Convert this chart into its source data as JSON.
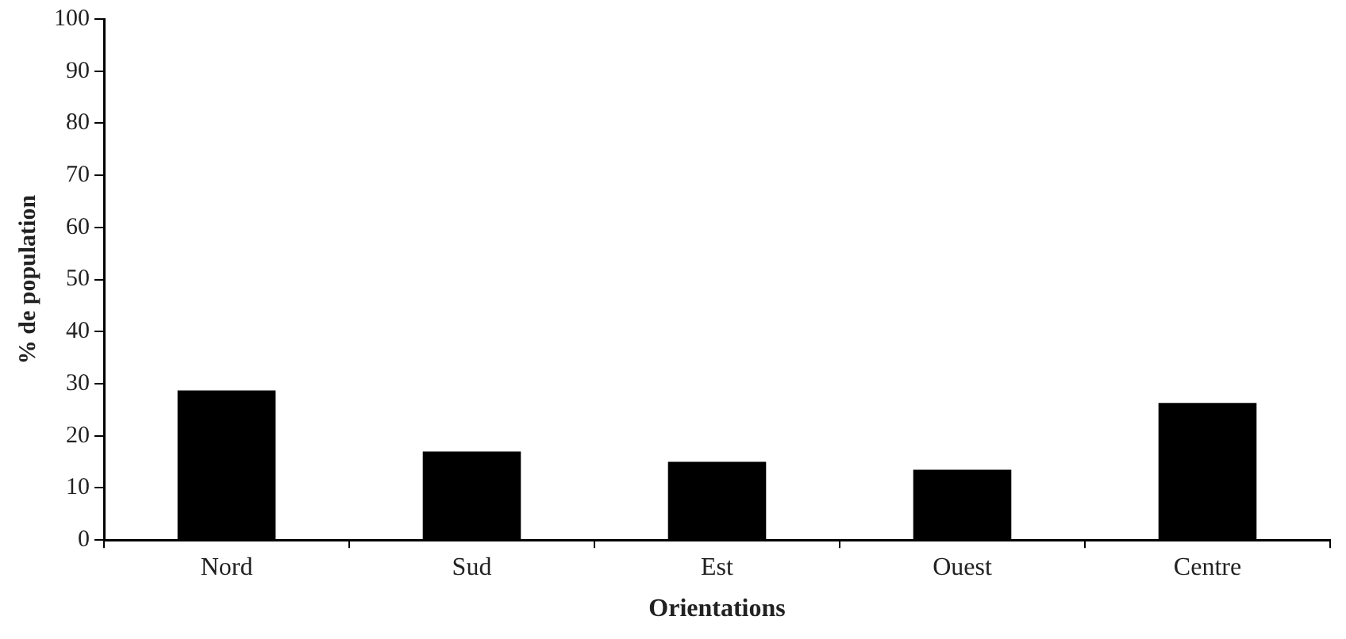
{
  "chart_data": {
    "type": "bar",
    "xlabel": "Orientations",
    "ylabel": "% de population",
    "categories": [
      "Nord",
      "Sud",
      "Est",
      "Ouest",
      "Centre"
    ],
    "values": [
      28.7,
      17,
      15,
      13.5,
      26.3
    ],
    "color": "#000000",
    "ylim": [
      0,
      100
    ],
    "yticks": [
      0,
      10,
      20,
      30,
      40,
      50,
      60,
      70,
      80,
      90,
      100
    ],
    "grid": false,
    "legend": false
  }
}
